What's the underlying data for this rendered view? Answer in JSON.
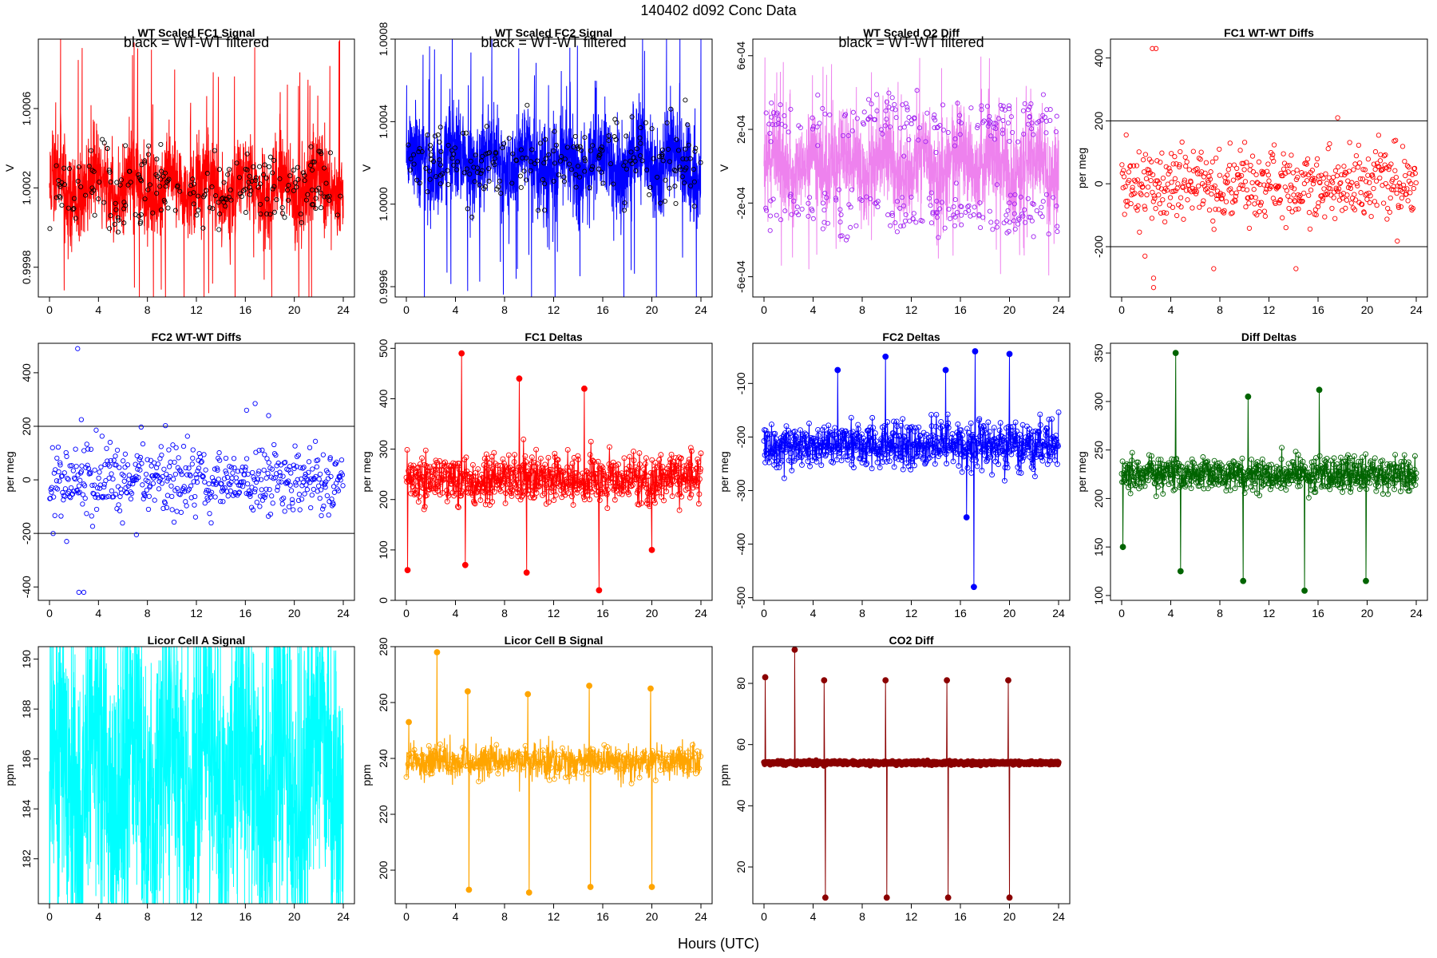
{
  "figure": {
    "title": "140402   d092   Conc Data",
    "xlabel": "Hours (UTC)"
  },
  "chart_data": [
    {
      "id": "p1",
      "type": "line",
      "title": "WT Scaled FC1 Signal",
      "ylabel": "V",
      "note": "black = WT-WT filtered",
      "xlim": [
        0,
        24
      ],
      "xticks": [
        "0",
        "4",
        "8",
        "12",
        "16",
        "20",
        "24"
      ],
      "ylim": [
        0.99965,
        1.00095
      ],
      "yticks": [
        {
          "v": 0.9998,
          "label": "0.9998"
        },
        {
          "v": 1.0002,
          "label": "1.0002"
        },
        {
          "v": 1.0006,
          "label": "1.0006"
        }
      ],
      "color": "#ff0000",
      "dense": {
        "center": 1.0002,
        "spread": 0.0002,
        "outliers": 0.0007
      },
      "markers": {
        "color": "#000000",
        "count": 220
      }
    },
    {
      "id": "p2",
      "type": "line",
      "title": "WT Scaled FC2 Signal",
      "ylabel": "V",
      "note": "black = WT-WT filtered",
      "xlim": [
        0,
        24
      ],
      "xticks": [
        "0",
        "4",
        "8",
        "12",
        "16",
        "20",
        "24"
      ],
      "ylim": [
        0.99955,
        1.0008
      ],
      "yticks": [
        {
          "v": 0.9996,
          "label": "0.9996"
        },
        {
          "v": 1.0,
          "label": "1.0000"
        },
        {
          "v": 1.0004,
          "label": "1.0004"
        },
        {
          "v": 1.0008,
          "label": "1.0008"
        }
      ],
      "color": "#0000ff",
      "dense": {
        "center": 1.0002,
        "spread": 0.0002,
        "outliers": 0.0006
      },
      "markers": {
        "color": "#000000",
        "count": 220
      }
    },
    {
      "id": "p3",
      "type": "line",
      "title": "WT Scaled O2 Diff",
      "ylabel": "V",
      "note": "black = WT-WT filtered",
      "xlim": [
        0,
        24
      ],
      "xticks": [
        "0",
        "4",
        "8",
        "12",
        "16",
        "20",
        "24"
      ],
      "ylim": [
        -0.00071,
        0.00069
      ],
      "yticks": [
        {
          "v": -0.0006,
          "label": "-6e-04"
        },
        {
          "v": -0.0002,
          "label": "-2e-04"
        },
        {
          "v": 0.0002,
          "label": "2e-04"
        },
        {
          "v": 0.0006,
          "label": "6e-04"
        }
      ],
      "color": "#ee82ee",
      "dense": {
        "center": 0.0,
        "spread": 0.00022,
        "outliers": 0.0005
      },
      "markers": {
        "color": "#a020f0",
        "count": 320,
        "bimodal": 0.00025
      }
    },
    {
      "id": "p4",
      "type": "scatter",
      "title": "FC1 WT-WT Diffs",
      "ylabel": "per meg",
      "xlim": [
        0,
        24
      ],
      "xticks": [
        "0",
        "4",
        "8",
        "12",
        "16",
        "20",
        "24"
      ],
      "ylim": [
        -360,
        460
      ],
      "yticks": [
        {
          "v": -200,
          "label": "-200"
        },
        {
          "v": 0,
          "label": "0"
        },
        {
          "v": 200,
          "label": "200"
        },
        {
          "v": 400,
          "label": "400"
        }
      ],
      "hlines": [
        200,
        -200
      ],
      "color": "#ff0000",
      "n": 520,
      "center": 0,
      "spread": 60,
      "outliers": [
        [
          2.5,
          430
        ],
        [
          2.8,
          430
        ],
        [
          1.9,
          -230
        ],
        [
          2.6,
          -300
        ],
        [
          2.6,
          -330
        ],
        [
          7.5,
          -270
        ],
        [
          14.2,
          -270
        ],
        [
          17.6,
          210
        ]
      ]
    },
    {
      "id": "p5",
      "type": "scatter",
      "title": "FC2 WT-WT Diffs",
      "ylabel": "per meg",
      "xlim": [
        0,
        24
      ],
      "xticks": [
        "0",
        "4",
        "8",
        "12",
        "16",
        "20",
        "24"
      ],
      "ylim": [
        -450,
        510
      ],
      "yticks": [
        {
          "v": -400,
          "label": "-400"
        },
        {
          "v": -200,
          "label": "-200"
        },
        {
          "v": 0,
          "label": "0"
        },
        {
          "v": 200,
          "label": "200"
        },
        {
          "v": 400,
          "label": "400"
        }
      ],
      "hlines": [
        200,
        -200
      ],
      "color": "#0000ff",
      "n": 520,
      "center": 0,
      "spread": 60,
      "outliers": [
        [
          2.3,
          490
        ],
        [
          2.6,
          225
        ],
        [
          1.4,
          -230
        ],
        [
          2.4,
          -420
        ],
        [
          2.8,
          -420
        ],
        [
          16.1,
          260
        ],
        [
          16.8,
          285
        ],
        [
          17.9,
          240
        ],
        [
          7.1,
          -205
        ]
      ]
    },
    {
      "id": "p6",
      "type": "line-markers",
      "title": "FC1 Deltas",
      "ylabel": "per meg",
      "xlim": [
        0,
        24
      ],
      "xticks": [
        "0",
        "4",
        "8",
        "12",
        "16",
        "20",
        "24"
      ],
      "ylim": [
        0,
        510
      ],
      "yticks": [
        {
          "v": 0,
          "label": "0"
        },
        {
          "v": 100,
          "label": "100"
        },
        {
          "v": 200,
          "label": "200"
        },
        {
          "v": 300,
          "label": "300"
        },
        {
          "v": 400,
          "label": "400"
        },
        {
          "v": 500,
          "label": "500"
        }
      ],
      "color": "#ff0000",
      "n": 700,
      "center": 240,
      "spread": 25,
      "spikes": [
        [
          4.5,
          490
        ],
        [
          9.2,
          440
        ],
        [
          14.5,
          420
        ],
        [
          15.7,
          20
        ],
        [
          9.8,
          55
        ],
        [
          0.1,
          60
        ],
        [
          4.8,
          70
        ],
        [
          20,
          100
        ]
      ]
    },
    {
      "id": "p7",
      "type": "line-markers",
      "title": "FC2 Deltas",
      "ylabel": "per meg",
      "xlim": [
        0,
        24
      ],
      "xticks": [
        "0",
        "4",
        "8",
        "12",
        "16",
        "20",
        "24"
      ],
      "ylim": [
        -505,
        -25
      ],
      "yticks": [
        {
          "v": -500,
          "label": "-500"
        },
        {
          "v": -400,
          "label": "-400"
        },
        {
          "v": -300,
          "label": "-300"
        },
        {
          "v": -200,
          "label": "-200"
        },
        {
          "v": -100,
          "label": "-100"
        }
      ],
      "color": "#0000ff",
      "n": 700,
      "center": -215,
      "spread": 22,
      "spikes": [
        [
          17.1,
          -480
        ],
        [
          17.2,
          -40
        ],
        [
          20,
          -45
        ],
        [
          9.9,
          -50
        ],
        [
          16.5,
          -350
        ],
        [
          6,
          -75
        ],
        [
          14.8,
          -75
        ]
      ]
    },
    {
      "id": "p8",
      "type": "line-markers",
      "title": "Diff Deltas",
      "ylabel": "per meg",
      "xlim": [
        0,
        24
      ],
      "xticks": [
        "0",
        "4",
        "8",
        "12",
        "16",
        "20",
        "24"
      ],
      "ylim": [
        95,
        360
      ],
      "yticks": [
        {
          "v": 100,
          "label": "100"
        },
        {
          "v": 150,
          "label": "150"
        },
        {
          "v": 200,
          "label": "200"
        },
        {
          "v": 250,
          "label": "250"
        },
        {
          "v": 300,
          "label": "300"
        },
        {
          "v": 350,
          "label": "350"
        }
      ],
      "color": "#006400",
      "n": 700,
      "center": 225,
      "spread": 9,
      "spikes": [
        [
          4.4,
          350
        ],
        [
          4.8,
          125
        ],
        [
          9.9,
          115
        ],
        [
          14.9,
          105
        ],
        [
          19.9,
          115
        ],
        [
          10.3,
          305
        ],
        [
          16.1,
          312
        ],
        [
          0.1,
          150
        ]
      ]
    },
    {
      "id": "p9",
      "type": "line",
      "title": "Licor Cell A Signal",
      "ylabel": "ppm",
      "xlim": [
        0,
        24
      ],
      "xticks": [
        "0",
        "4",
        "8",
        "12",
        "16",
        "20",
        "24"
      ],
      "ylim": [
        180.2,
        190.5
      ],
      "yticks": [
        {
          "v": 182,
          "label": "182"
        },
        {
          "v": 184,
          "label": "184"
        },
        {
          "v": 186,
          "label": "186"
        },
        {
          "v": 188,
          "label": "188"
        },
        {
          "v": 190,
          "label": "190"
        }
      ],
      "color": "#00ffff",
      "dense": {
        "center": 185.5,
        "spread": 6,
        "outliers": 0
      }
    },
    {
      "id": "p10",
      "type": "line-markers",
      "title": "Licor Cell B Signal",
      "ylabel": "ppm",
      "xlim": [
        0,
        24
      ],
      "xticks": [
        "0",
        "4",
        "8",
        "12",
        "16",
        "20",
        "24"
      ],
      "ylim": [
        188,
        280
      ],
      "yticks": [
        {
          "v": 200,
          "label": "200"
        },
        {
          "v": 220,
          "label": "220"
        },
        {
          "v": 240,
          "label": "240"
        },
        {
          "v": 260,
          "label": "260"
        },
        {
          "v": 280,
          "label": "280"
        }
      ],
      "color": "#ffa500",
      "n": 1100,
      "center": 239,
      "spread": 3,
      "lineOnly": true,
      "spikes": [
        [
          5,
          264
        ],
        [
          5.1,
          193
        ],
        [
          9.9,
          263
        ],
        [
          10,
          192
        ],
        [
          14.9,
          266
        ],
        [
          15,
          194
        ],
        [
          19.9,
          265
        ],
        [
          20,
          194
        ],
        [
          2.5,
          278
        ],
        [
          0.2,
          253
        ]
      ]
    },
    {
      "id": "p11",
      "type": "line-markers",
      "title": "CO2 Diff",
      "ylabel": "ppm",
      "xlim": [
        0,
        24
      ],
      "xticks": [
        "0",
        "4",
        "8",
        "12",
        "16",
        "20",
        "24"
      ],
      "ylim": [
        8,
        92
      ],
      "yticks": [
        {
          "v": 20,
          "label": "20"
        },
        {
          "v": 40,
          "label": "40"
        },
        {
          "v": 60,
          "label": "60"
        },
        {
          "v": 80,
          "label": "80"
        }
      ],
      "color": "#8b0000",
      "n": 900,
      "center": 54,
      "spread": 0.3,
      "filled": true,
      "spikes": [
        [
          4.9,
          81
        ],
        [
          5,
          10
        ],
        [
          9.9,
          81
        ],
        [
          10,
          10
        ],
        [
          14.9,
          81
        ],
        [
          15,
          10
        ],
        [
          19.9,
          81
        ],
        [
          20,
          10
        ],
        [
          2.5,
          91
        ],
        [
          0.1,
          82
        ]
      ]
    }
  ]
}
